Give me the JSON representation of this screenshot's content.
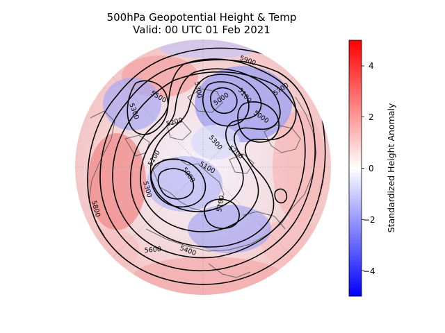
{
  "title": {
    "line1": "500hPa Geopotential Height & Temp",
    "line2": "Valid: 00 UTC 01 Feb 2021"
  },
  "colorbar": {
    "label": "Standardized Height Anomaly",
    "min": -5,
    "max": 5,
    "ticks": [
      "4",
      "2",
      "0",
      "−2",
      "−4"
    ],
    "colors": {
      "high": "#ff0000",
      "mid": "#ffffff",
      "low": "#0000ff"
    }
  },
  "map": {
    "projection": "north polar stereographic",
    "contour_color": "#000000",
    "coastline_color": "#555555",
    "contour_labels": [
      "5900",
      "5700",
      "5500",
      "5300",
      "5300",
      "5100",
      "5000",
      "5000",
      "5200",
      "5300",
      "5200",
      "5100",
      "5000",
      "5200",
      "5300",
      "5800",
      "5100",
      "5600",
      "5400"
    ]
  }
}
